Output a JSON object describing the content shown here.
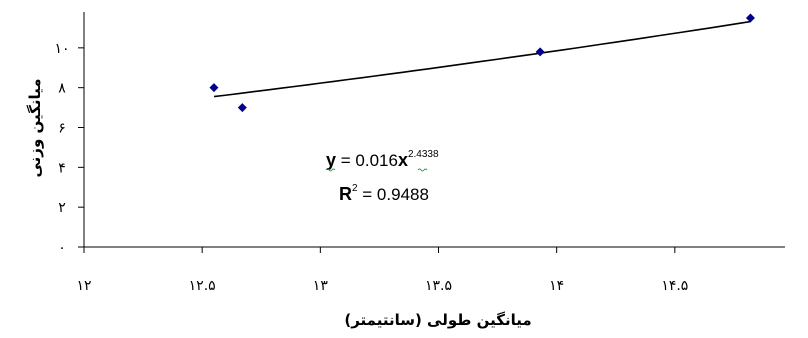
{
  "chart_data": {
    "type": "scatter",
    "xlabel": "میانگین طولی (سانتیمتر)",
    "ylabel": "میانگین وزنی",
    "xlim": [
      12,
      15
    ],
    "ylim": [
      0,
      11.8
    ],
    "x_ticks": [
      12,
      12.5,
      13,
      13.5,
      14,
      14.5
    ],
    "y_ticks": [
      0,
      2,
      4,
      6,
      8,
      10
    ],
    "x_tick_labels": [
      "۱۲",
      "۱۲.۵",
      "۱۳",
      "۱۳.۵",
      "۱۴",
      "۱۴.۵"
    ],
    "y_tick_labels": [
      "۰",
      "۲",
      "۴",
      "۶",
      "۸",
      "۱۰"
    ],
    "points": [
      {
        "x": 12.55,
        "y": 8.0
      },
      {
        "x": 12.67,
        "y": 7.0
      },
      {
        "x": 13.93,
        "y": 9.8
      },
      {
        "x": 14.82,
        "y": 11.5
      }
    ],
    "trendline": {
      "type": "power",
      "a": 0.016,
      "b": 2.4338,
      "x_range": [
        12.55,
        14.82
      ]
    },
    "annotations": {
      "eq_y": "y",
      "eq_mid": " = 0.016",
      "eq_x": "x",
      "eq_exp": "2.4338",
      "r2_r": "R",
      "r2_sup": "2",
      "r2_val": " = 0.9488"
    },
    "grid": false,
    "legend": "none",
    "marker_color": "#00008b",
    "line_color": "#000000"
  }
}
